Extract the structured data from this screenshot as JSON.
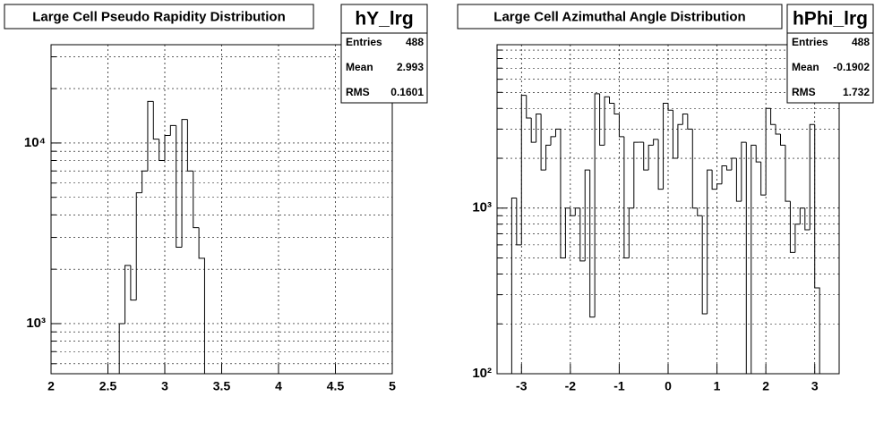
{
  "chart_data": [
    {
      "type": "histogram",
      "title": "Large Cell Pseudo Rapidity Distribution",
      "stats": {
        "name": "hY_lrg",
        "rows": [
          {
            "label": "Entries",
            "value": 488
          },
          {
            "label": "Mean",
            "value": 2.993
          },
          {
            "label": "RMS",
            "value": 0.1601
          }
        ]
      },
      "bins": [
        2.6,
        2.65,
        2.7,
        2.75,
        2.8,
        2.85,
        2.9,
        2.95,
        3.0,
        3.05,
        3.1,
        3.15,
        3.2,
        3.25,
        3.3,
        3.35
      ],
      "values": [
        1000,
        2100,
        1350,
        5300,
        7000,
        17000,
        10500,
        8000,
        11000,
        12500,
        2650,
        13500,
        7000,
        3400,
        2300
      ],
      "color": "#000000",
      "log_y": true,
      "grid": true,
      "xlim": [
        2,
        5
      ],
      "xticks": [
        2,
        2.5,
        3,
        3.5,
        4,
        4.5,
        5
      ],
      "ylim": [
        528,
        35000
      ],
      "yticks": [
        {
          "value": 1000,
          "label": "10³"
        },
        {
          "value": 10000,
          "label": "10⁴"
        }
      ],
      "minor_yticks": [
        600,
        700,
        800,
        900,
        2000,
        3000,
        4000,
        5000,
        6000,
        7000,
        8000,
        9000,
        20000,
        30000
      ]
    },
    {
      "type": "histogram",
      "title": "Large Cell Azimuthal Angle Distribution",
      "stats": {
        "name": "hPhi_lrg",
        "rows": [
          {
            "label": "Entries",
            "value": 488
          },
          {
            "label": "Mean",
            "value": -0.1902
          },
          {
            "label": "RMS",
            "value": 1.732
          }
        ]
      },
      "bins": [
        -3.2,
        -3.1,
        -3.0,
        -2.9,
        -2.8,
        -2.7,
        -2.6,
        -2.5,
        -2.4,
        -2.3,
        -2.2,
        -2.1,
        -2.0,
        -1.9,
        -1.8,
        -1.7,
        -1.6,
        -1.5,
        -1.4,
        -1.3,
        -1.2,
        -1.1,
        -1.0,
        -0.9,
        -0.8,
        -0.7,
        -0.6,
        -0.5,
        -0.4,
        -0.3,
        -0.2,
        -0.1,
        0.0,
        0.1,
        0.2,
        0.3,
        0.4,
        0.5,
        0.6,
        0.7,
        0.8,
        0.9,
        1.0,
        1.1,
        1.2,
        1.3,
        1.4,
        1.5,
        1.6,
        1.7,
        1.8,
        1.9,
        2.0,
        2.1,
        2.2,
        2.3,
        2.4,
        2.5,
        2.6,
        2.7,
        2.8,
        2.9,
        3.0,
        3.1
      ],
      "values": [
        1150,
        600,
        4800,
        3500,
        2500,
        3700,
        1700,
        2400,
        2700,
        3000,
        500,
        1000,
        900,
        1000,
        480,
        1700,
        220,
        4900,
        2400,
        4700,
        4300,
        3700,
        2700,
        500,
        1000,
        2500,
        2500,
        1700,
        2400,
        2600,
        1300,
        4300,
        3900,
        2000,
        3200,
        3700,
        3000,
        1000,
        900,
        230,
        1700,
        1300,
        1400,
        1800,
        1700,
        2000,
        1100,
        2500,
        100,
        2400,
        1900,
        1200,
        4000,
        3200,
        2800,
        2400,
        1100,
        540,
        800,
        1000,
        740,
        3200,
        330
      ],
      "color": "#000000",
      "log_y": true,
      "grid": true,
      "xlim": [
        -3.5,
        3.5
      ],
      "xticks": [
        -3,
        -2,
        -1,
        0,
        1,
        2,
        3
      ],
      "ylim": [
        100,
        9700
      ],
      "yticks": [
        {
          "value": 100,
          "label": "10²"
        },
        {
          "value": 1000,
          "label": "10³"
        }
      ],
      "minor_yticks": [
        200,
        300,
        400,
        500,
        600,
        700,
        800,
        900,
        2000,
        3000,
        4000,
        5000,
        6000,
        7000,
        8000,
        9000
      ]
    }
  ]
}
